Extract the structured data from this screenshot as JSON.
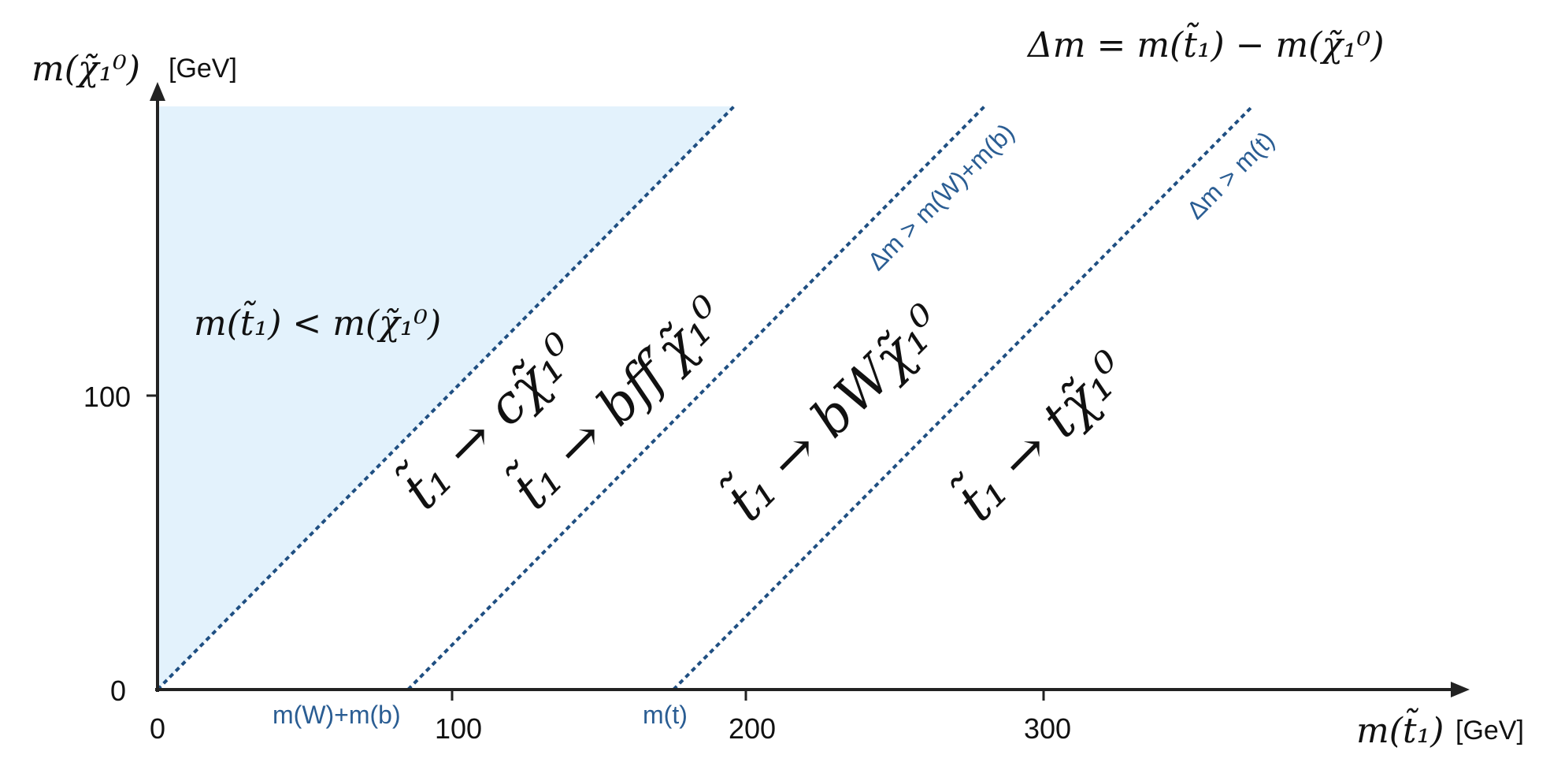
{
  "axes": {
    "x_label_math": "m(t̃₁)",
    "x_label_unit": "[GeV]",
    "y_label_math": "m(χ̃₁⁰)",
    "y_label_unit": "[GeV]",
    "x_ticks": [
      "0",
      "100",
      "200",
      "300"
    ],
    "y_ticks": [
      "0",
      "100"
    ]
  },
  "definition": "Δm = m(t̃₁) − m(χ̃₁⁰)",
  "forbidden_region_label": "m(t̃₁) < m(χ̃₁⁰)",
  "boundaries": [
    {
      "axis_label": "",
      "line_label": ""
    },
    {
      "axis_label": "m(W)+m(b)",
      "line_label": "Δm > m(W)+m(b)"
    },
    {
      "axis_label": "m(t)",
      "line_label": "Δm > m(t)"
    }
  ],
  "decays": [
    "t̃₁ → cχ̃₁⁰",
    "t̃₁ → bff′χ̃₁⁰",
    "t̃₁ → bWχ̃₁⁰",
    "t̃₁ → tχ̃₁⁰"
  ],
  "colors": {
    "axis": "#222222",
    "boundary": "#1f4f82",
    "annotation": "#2a5d93",
    "forbidden_fill": "#e3f2fc",
    "text": "#111111"
  }
}
